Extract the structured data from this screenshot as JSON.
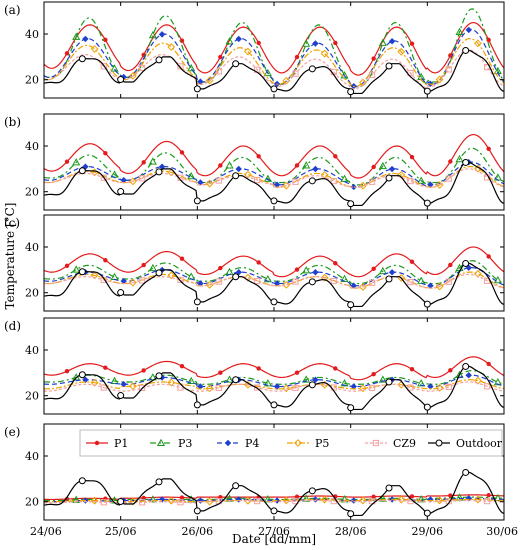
{
  "chart_data": {
    "type": "line",
    "xlabel": "Date [dd/mm]",
    "ylabel": "Temperature [°C]",
    "x_ticks": [
      "24/06",
      "25/06",
      "26/06",
      "27/06",
      "28/06",
      "29/06",
      "30/06"
    ],
    "xlim_days": [
      0,
      6
    ],
    "ylim": [
      12,
      54
    ],
    "y_ticks": [
      20,
      40
    ],
    "legend": {
      "placement": "top",
      "panel": "e",
      "entries": [
        "P1",
        "P3",
        "P4",
        "P5",
        "CZ9",
        "Outdoor"
      ]
    },
    "series_styles": [
      {
        "name": "P1",
        "color": "#e41a1c",
        "dash": "",
        "marker": "star"
      },
      {
        "name": "P3",
        "color": "#1a9a1a",
        "dash": "6,3,2,3",
        "marker": "triangle"
      },
      {
        "name": "P4",
        "color": "#1f3fcf",
        "dash": "5,3",
        "marker": "diamond"
      },
      {
        "name": "P5",
        "color": "#f0a000",
        "dash": "6,2,2,2",
        "marker": "diamond-open"
      },
      {
        "name": "CZ9",
        "color": "#f4a0a0",
        "dash": "3,2",
        "marker": "square-open"
      },
      {
        "name": "Outdoor",
        "color": "#000000",
        "dash": "",
        "marker": "circle-open"
      }
    ],
    "outdoor_daily": [
      {
        "min": 18,
        "max": 30
      },
      {
        "min": 19,
        "max": 30
      },
      {
        "min": 16,
        "max": 27
      },
      {
        "min": 15,
        "max": 26
      },
      {
        "min": 14,
        "max": 27
      },
      {
        "min": 15,
        "max": 33
      }
    ],
    "panels": [
      {
        "label": "(a)",
        "series": [
          {
            "name": "P1",
            "mins": [
              25,
              24,
              23,
              23,
              22,
              23
            ],
            "maxs": [
              44,
              44,
              43,
              43,
              43,
              45
            ]
          },
          {
            "name": "P3",
            "mins": [
              21,
              21,
              19,
              18,
              17,
              19
            ],
            "maxs": [
              47,
              48,
              45,
              44,
              45,
              51
            ]
          },
          {
            "name": "P4",
            "mins": [
              21,
              21,
              19,
              18,
              17,
              18
            ],
            "maxs": [
              38,
              40,
              38,
              36,
              37,
              42
            ]
          },
          {
            "name": "P5",
            "mins": [
              20,
              20,
              18,
              18,
              17,
              18
            ],
            "maxs": [
              35,
              36,
              34,
              33,
              34,
              38
            ]
          },
          {
            "name": "CZ9",
            "mins": [
              20,
              20,
              18,
              17,
              16,
              17
            ],
            "maxs": [
              31,
              31,
              30,
              29,
              29,
              33
            ]
          }
        ]
      },
      {
        "label": "(b)",
        "series": [
          {
            "name": "P1",
            "mins": [
              29,
              28,
              27,
              27,
              26,
              27
            ],
            "maxs": [
              41,
              42,
              40,
              40,
              40,
              45
            ]
          },
          {
            "name": "P3",
            "mins": [
              26,
              25,
              24,
              24,
              23,
              24
            ],
            "maxs": [
              36,
              37,
              35,
              35,
              35,
              39
            ]
          },
          {
            "name": "P4",
            "mins": [
              25,
              25,
              24,
              23,
              22,
              23
            ],
            "maxs": [
              31,
              31,
              30,
              30,
              30,
              33
            ]
          },
          {
            "name": "P5",
            "mins": [
              24,
              24,
              23,
              22,
              22,
              22
            ],
            "maxs": [
              29,
              29,
              28,
              28,
              28,
              31
            ]
          },
          {
            "name": "CZ9",
            "mins": [
              24,
              24,
              23,
              22,
              22,
              22
            ],
            "maxs": [
              28,
              28,
              27,
              27,
              27,
              30
            ]
          }
        ]
      },
      {
        "label": "(c)",
        "series": [
          {
            "name": "P1",
            "mins": [
              29,
              29,
              28,
              27,
              27,
              28
            ],
            "maxs": [
              37,
              38,
              36,
              36,
              37,
              40
            ]
          },
          {
            "name": "P3",
            "mins": [
              26,
              26,
              25,
              25,
              24,
              24
            ],
            "maxs": [
              32,
              33,
              31,
              32,
              32,
              34
            ]
          },
          {
            "name": "P4",
            "mins": [
              25,
              25,
              24,
              24,
              23,
              23
            ],
            "maxs": [
              29,
              30,
              29,
              29,
              29,
              31
            ]
          },
          {
            "name": "P5",
            "mins": [
              24,
              24,
              23,
              23,
              22,
              22
            ],
            "maxs": [
              28,
              28,
              27,
              27,
              27,
              29
            ]
          },
          {
            "name": "CZ9",
            "mins": [
              24,
              24,
              23,
              23,
              22,
              22
            ],
            "maxs": [
              27,
              27,
              27,
              27,
              27,
              28
            ]
          }
        ]
      },
      {
        "label": "(d)",
        "series": [
          {
            "name": "P1",
            "mins": [
              29,
              29,
              28,
              28,
              27,
              28
            ],
            "maxs": [
              34,
              35,
              34,
              34,
              34,
              37
            ]
          },
          {
            "name": "P3",
            "mins": [
              26,
              26,
              25,
              25,
              25,
              25
            ],
            "maxs": [
              29,
              29,
              28,
              28,
              28,
              31
            ]
          },
          {
            "name": "P4",
            "mins": [
              25,
              25,
              24,
              24,
              24,
              24
            ],
            "maxs": [
              27,
              28,
              27,
              27,
              27,
              29
            ]
          },
          {
            "name": "P5",
            "mins": [
              23,
              24,
              23,
              23,
              23,
              23
            ],
            "maxs": [
              26,
              26,
              25,
              25,
              25,
              27
            ]
          },
          {
            "name": "CZ9",
            "mins": [
              22,
              22,
              22,
              22,
              22,
              22
            ],
            "maxs": [
              25,
              25,
              25,
              25,
              25,
              26
            ]
          }
        ]
      },
      {
        "label": "(e)",
        "series": [
          {
            "name": "P1",
            "mins": [
              21,
              21.5,
              22,
              22,
              22,
              22.5
            ],
            "maxs": [
              21.5,
              22,
              22,
              22.5,
              22.5,
              23
            ]
          },
          {
            "name": "P3",
            "mins": [
              20.5,
              21,
              21,
              21,
              21,
              21.5
            ],
            "maxs": [
              21,
              21,
              21.5,
              21.5,
              21.5,
              22
            ]
          },
          {
            "name": "P4",
            "mins": [
              20,
              20.5,
              20.5,
              20.5,
              20.5,
              21
            ],
            "maxs": [
              20.5,
              21,
              21,
              21,
              21,
              21.5
            ]
          },
          {
            "name": "P5",
            "mins": [
              20,
              20,
              20,
              20.5,
              20.5,
              20.5
            ],
            "maxs": [
              20.5,
              20.5,
              20.5,
              21,
              21,
              21
            ]
          },
          {
            "name": "CZ9",
            "mins": [
              19.5,
              19.5,
              20,
              20,
              20,
              20
            ],
            "maxs": [
              20,
              20,
              20.5,
              20.5,
              20.5,
              20.5
            ]
          }
        ]
      }
    ]
  }
}
